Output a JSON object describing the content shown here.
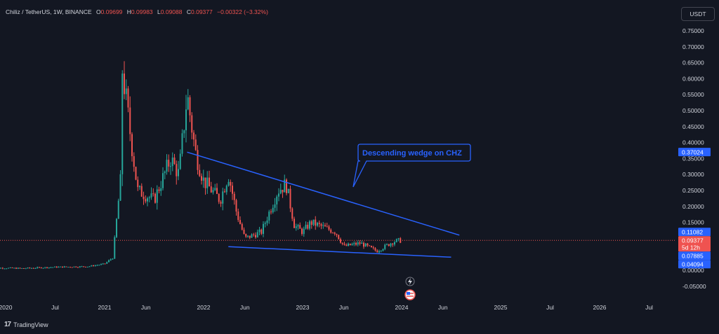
{
  "legend": {
    "symbol": "Chiliz / TetherUS, 1W, BINANCE",
    "open_label": "O",
    "open": "0.09699",
    "high_label": "H",
    "high": "0.09983",
    "low_label": "L",
    "low": "0.09088",
    "close_label": "C",
    "close": "0.09377",
    "change": "−0.00322 (−3.32%)"
  },
  "currency": "USDT",
  "branding": {
    "logo": "tradingview-logo",
    "name": "TradingView"
  },
  "annotation": {
    "text": "Descending wedge on CHZ",
    "color": "#2962ff"
  },
  "colors": {
    "up": "#26a69a",
    "down": "#ef5350",
    "line": "#2962ff",
    "bg": "#131722"
  },
  "chart_data": {
    "type": "candlestick",
    "y_ticks": [
      "0.75000",
      "0.70000",
      "0.65000",
      "0.60000",
      "0.55000",
      "0.50000",
      "0.45000",
      "0.40000",
      "0.35000",
      "0.30000",
      "0.25000",
      "0.20000",
      "0.15000",
      "0.10000",
      "0.05000",
      "0.00000",
      "-0.05000"
    ],
    "ylim": [
      -0.065,
      0.8
    ],
    "x_ticks": [
      "2020",
      "Jul",
      "2021",
      "Jun",
      "2022",
      "Jun",
      "2023",
      "Jun",
      "2024",
      "Jun",
      "2025",
      "Jul",
      "2026",
      "Jul"
    ],
    "price_badges": [
      {
        "value": "0.37024",
        "color": "#2962ff"
      },
      {
        "value": "0.11082",
        "color": "#2962ff"
      },
      {
        "value": "0.09377",
        "color": "#ef5350"
      },
      {
        "value": "5d 12h",
        "color": "#ef5350"
      },
      {
        "value": "0.07885",
        "color": "#2962ff"
      },
      {
        "value": "0.04094",
        "color": "#2962ff"
      }
    ],
    "last_price": 0.09377,
    "trendlines": [
      {
        "name": "upper-trendline",
        "from": [
          "2021-11",
          0.37
        ],
        "to": [
          "2024-08",
          0.11
        ]
      },
      {
        "name": "lower-trendline",
        "from": [
          "2022-04",
          0.074
        ],
        "to": [
          "2024-07",
          0.041
        ]
      }
    ],
    "price_path": [
      [
        "2019-11",
        0.008
      ],
      [
        "2020-03",
        0.006
      ],
      [
        "2020-07",
        0.01
      ],
      [
        "2020-11",
        0.012
      ],
      [
        "2021-01",
        0.02
      ],
      [
        "2021-02",
        0.04
      ],
      [
        "2021-03",
        0.3
      ],
      [
        "2021-03",
        0.66
      ],
      [
        "2021-04",
        0.45
      ],
      [
        "2021-05",
        0.25
      ],
      [
        "2021-07",
        0.22
      ],
      [
        "2021-09",
        0.35
      ],
      [
        "2021-10",
        0.3
      ],
      [
        "2021-11",
        0.55
      ],
      [
        "2021-12",
        0.37
      ],
      [
        "2022-01",
        0.28
      ],
      [
        "2022-03",
        0.22
      ],
      [
        "2022-04",
        0.3
      ],
      [
        "2022-05",
        0.18
      ],
      [
        "2022-06",
        0.1
      ],
      [
        "2022-08",
        0.12
      ],
      [
        "2022-10",
        0.25
      ],
      [
        "2022-11",
        0.27
      ],
      [
        "2022-12",
        0.14
      ],
      [
        "2023-01",
        0.12
      ],
      [
        "2023-02",
        0.15
      ],
      [
        "2023-04",
        0.13
      ],
      [
        "2023-05",
        0.12
      ],
      [
        "2023-06",
        0.075
      ],
      [
        "2023-08",
        0.085
      ],
      [
        "2023-10",
        0.06
      ],
      [
        "2023-11",
        0.075
      ],
      [
        "2023-12",
        0.09
      ],
      [
        "2024-01",
        0.094
      ]
    ]
  }
}
